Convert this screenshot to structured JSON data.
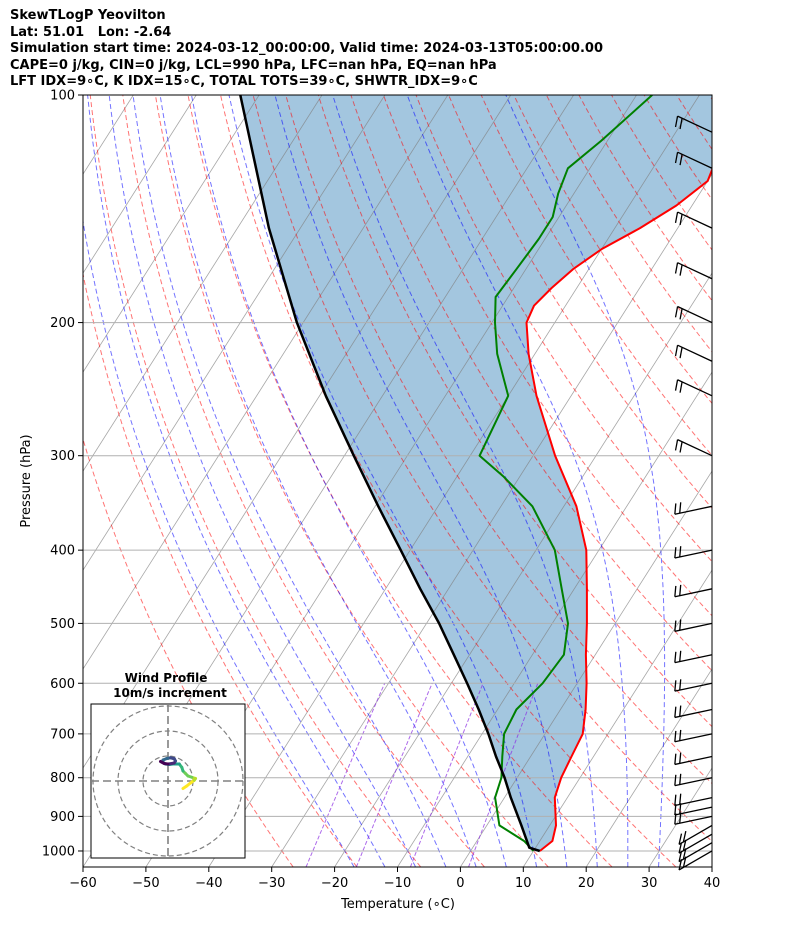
{
  "header": {
    "lines": [
      "SkewTLogP Yeovilton",
      "Lat: 51.01   Lon: -2.64",
      "Simulation start time: 2024-03-12_00:00:00, Valid time: 2024-03-13T05:00:00.00",
      "CAPE=0 j/kg, CIN=0 j/kg, LCL=990 hPa, LFC=nan hPa, EQ=nan hPa",
      "LFT IDX=9∘C, K IDX=15∘C, TOTAL TOTS=39∘C, SHWTR_IDX=9∘C"
    ]
  },
  "chart_data": {
    "type": "line",
    "subtype": "skew-T log-p diagram",
    "xlabel": "Temperature (∘C)",
    "ylabel": "Pressure (hPa)",
    "xlim": [
      -60,
      40
    ],
    "ylim_hpa": [
      1050,
      100
    ],
    "x_ticks": [
      "−60",
      "−50",
      "−40",
      "−30",
      "−20",
      "−10",
      "0",
      "10",
      "20",
      "30",
      "40"
    ],
    "y_ticks": [
      "100",
      "200",
      "300",
      "400",
      "500",
      "600",
      "700",
      "800",
      "900",
      "1000"
    ],
    "y_tick_values": [
      100,
      200,
      300,
      400,
      500,
      600,
      700,
      800,
      900,
      1000
    ],
    "x_tick_values": [
      -60,
      -50,
      -40,
      -30,
      -20,
      -10,
      0,
      10,
      20,
      30,
      40
    ],
    "grid": true,
    "colors": {
      "temperature": "#ff0000",
      "dewpoint": "#008000",
      "parcel": "#000000",
      "shade": "#a3c6df",
      "dry_adiabat": "#ff0000",
      "moist_adiabat": "#0000ff",
      "mixing_ratio": "#8a2be2",
      "isotherm": "#808080"
    },
    "series": [
      {
        "key": "temperature",
        "points": [
          [
            1000,
            11.0
          ],
          [
            970,
            12.0
          ],
          [
            925,
            11.0
          ],
          [
            850,
            8.0
          ],
          [
            800,
            7.0
          ],
          [
            750,
            6.5
          ],
          [
            700,
            6.0
          ],
          [
            650,
            4.0
          ],
          [
            600,
            1.5
          ],
          [
            550,
            -1.5
          ],
          [
            500,
            -4.5
          ],
          [
            450,
            -8.0
          ],
          [
            400,
            -12.0
          ],
          [
            350,
            -18.0
          ],
          [
            300,
            -26.5
          ],
          [
            250,
            -35.5
          ],
          [
            220,
            -41.0
          ],
          [
            200,
            -44.5
          ],
          [
            190,
            -45.0
          ],
          [
            180,
            -44.0
          ],
          [
            170,
            -42.5
          ],
          [
            160,
            -40.0
          ],
          [
            150,
            -36.0
          ],
          [
            140,
            -32.5
          ],
          [
            130,
            -30.0
          ],
          [
            120,
            -31.0
          ],
          [
            110,
            -33.5
          ],
          [
            100,
            -36.0
          ]
        ]
      },
      {
        "key": "dewpoint",
        "points": [
          [
            1000,
            10.0
          ],
          [
            970,
            7.5
          ],
          [
            925,
            2.0
          ],
          [
            850,
            -1.5
          ],
          [
            800,
            -2.5
          ],
          [
            750,
            -4.5
          ],
          [
            700,
            -6.5
          ],
          [
            650,
            -7.0
          ],
          [
            600,
            -5.5
          ],
          [
            550,
            -5.0
          ],
          [
            500,
            -7.5
          ],
          [
            450,
            -12.0
          ],
          [
            400,
            -17.0
          ],
          [
            350,
            -25.0
          ],
          [
            320,
            -32.5
          ],
          [
            300,
            -38.5
          ],
          [
            250,
            -40.0
          ],
          [
            220,
            -46.0
          ],
          [
            200,
            -49.5
          ],
          [
            185,
            -52.0
          ],
          [
            170,
            -51.5
          ],
          [
            155,
            -51.0
          ],
          [
            145,
            -51.0
          ],
          [
            135,
            -52.5
          ],
          [
            125,
            -53.5
          ],
          [
            115,
            -51.0
          ],
          [
            100,
            -47.5
          ]
        ]
      },
      {
        "key": "parcel",
        "points": [
          [
            1000,
            11.0
          ],
          [
            990,
            9.0
          ],
          [
            925,
            5.5
          ],
          [
            850,
            1.0
          ],
          [
            800,
            -2.0
          ],
          [
            750,
            -5.5
          ],
          [
            700,
            -9.0
          ],
          [
            650,
            -13.0
          ],
          [
            600,
            -17.5
          ],
          [
            550,
            -22.5
          ],
          [
            500,
            -28.0
          ],
          [
            450,
            -34.5
          ],
          [
            400,
            -41.5
          ],
          [
            350,
            -49.5
          ],
          [
            300,
            -58.5
          ],
          [
            250,
            -69.0
          ],
          [
            200,
            -81.0
          ],
          [
            150,
            -95.0
          ],
          [
            100,
            -113.0
          ]
        ]
      }
    ],
    "wind_barb_levels": [
      1000,
      975,
      950,
      925,
      900,
      875,
      850,
      800,
      750,
      700,
      650,
      600,
      550,
      500,
      450,
      400,
      350,
      300,
      250,
      225,
      200,
      175,
      150,
      125,
      112
    ],
    "wind_profile_inset": {
      "title": "Wind Profile",
      "subtitle": "10m/s increment",
      "ring_step_ms": 10,
      "rings": 3,
      "colormap": "viridis",
      "hodograph_uv": [
        [
          6.0,
          -3.0
        ],
        [
          7.5,
          -2.0
        ],
        [
          9.0,
          -0.8
        ],
        [
          10.5,
          0.3
        ],
        [
          11.0,
          1.0
        ],
        [
          9.5,
          1.5
        ],
        [
          8.0,
          2.0
        ],
        [
          7.0,
          3.0
        ],
        [
          6.0,
          4.0
        ],
        [
          5.5,
          5.5
        ],
        [
          4.5,
          6.8
        ],
        [
          2.0,
          6.8
        ],
        [
          0.5,
          6.6
        ],
        [
          -1.0,
          6.8
        ],
        [
          -2.0,
          7.4
        ],
        [
          -2.0,
          8.4
        ],
        [
          -0.5,
          9.0
        ],
        [
          1.0,
          9.3
        ],
        [
          2.5,
          8.9
        ],
        [
          3.0,
          8.0
        ],
        [
          2.5,
          7.2
        ],
        [
          1.5,
          7.0
        ],
        [
          0.0,
          6.8
        ],
        [
          -1.5,
          7.0
        ],
        [
          -3.0,
          7.8
        ]
      ]
    }
  }
}
